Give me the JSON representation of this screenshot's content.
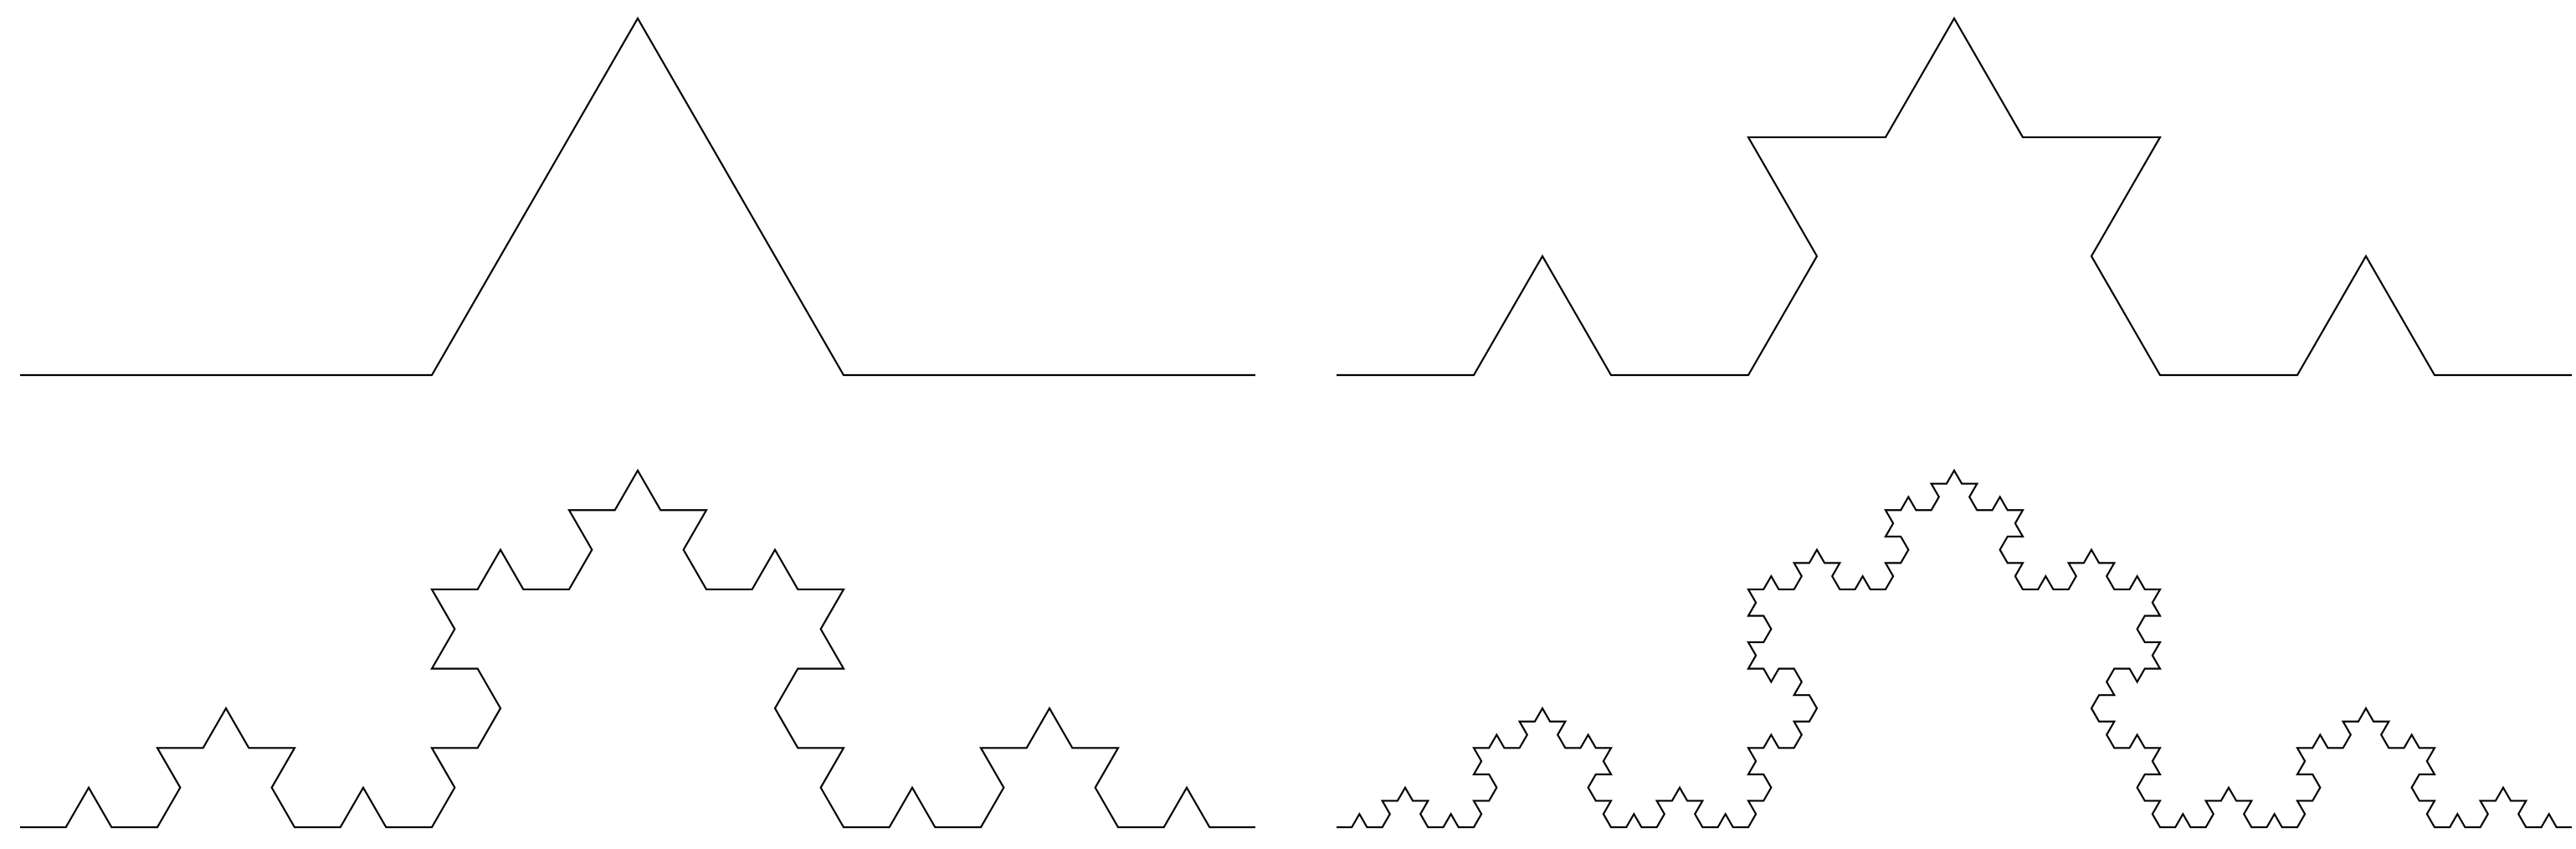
{
  "figure": {
    "background": "#ffffff",
    "line_color": "#000000",
    "panels": [
      {
        "name": "koch-curve-iteration-1",
        "iteration": 1
      },
      {
        "name": "koch-curve-iteration-2",
        "iteration": 2
      },
      {
        "name": "koch-curve-iteration-3",
        "iteration": 3
      },
      {
        "name": "koch-curve-iteration-4",
        "iteration": 4
      }
    ]
  }
}
